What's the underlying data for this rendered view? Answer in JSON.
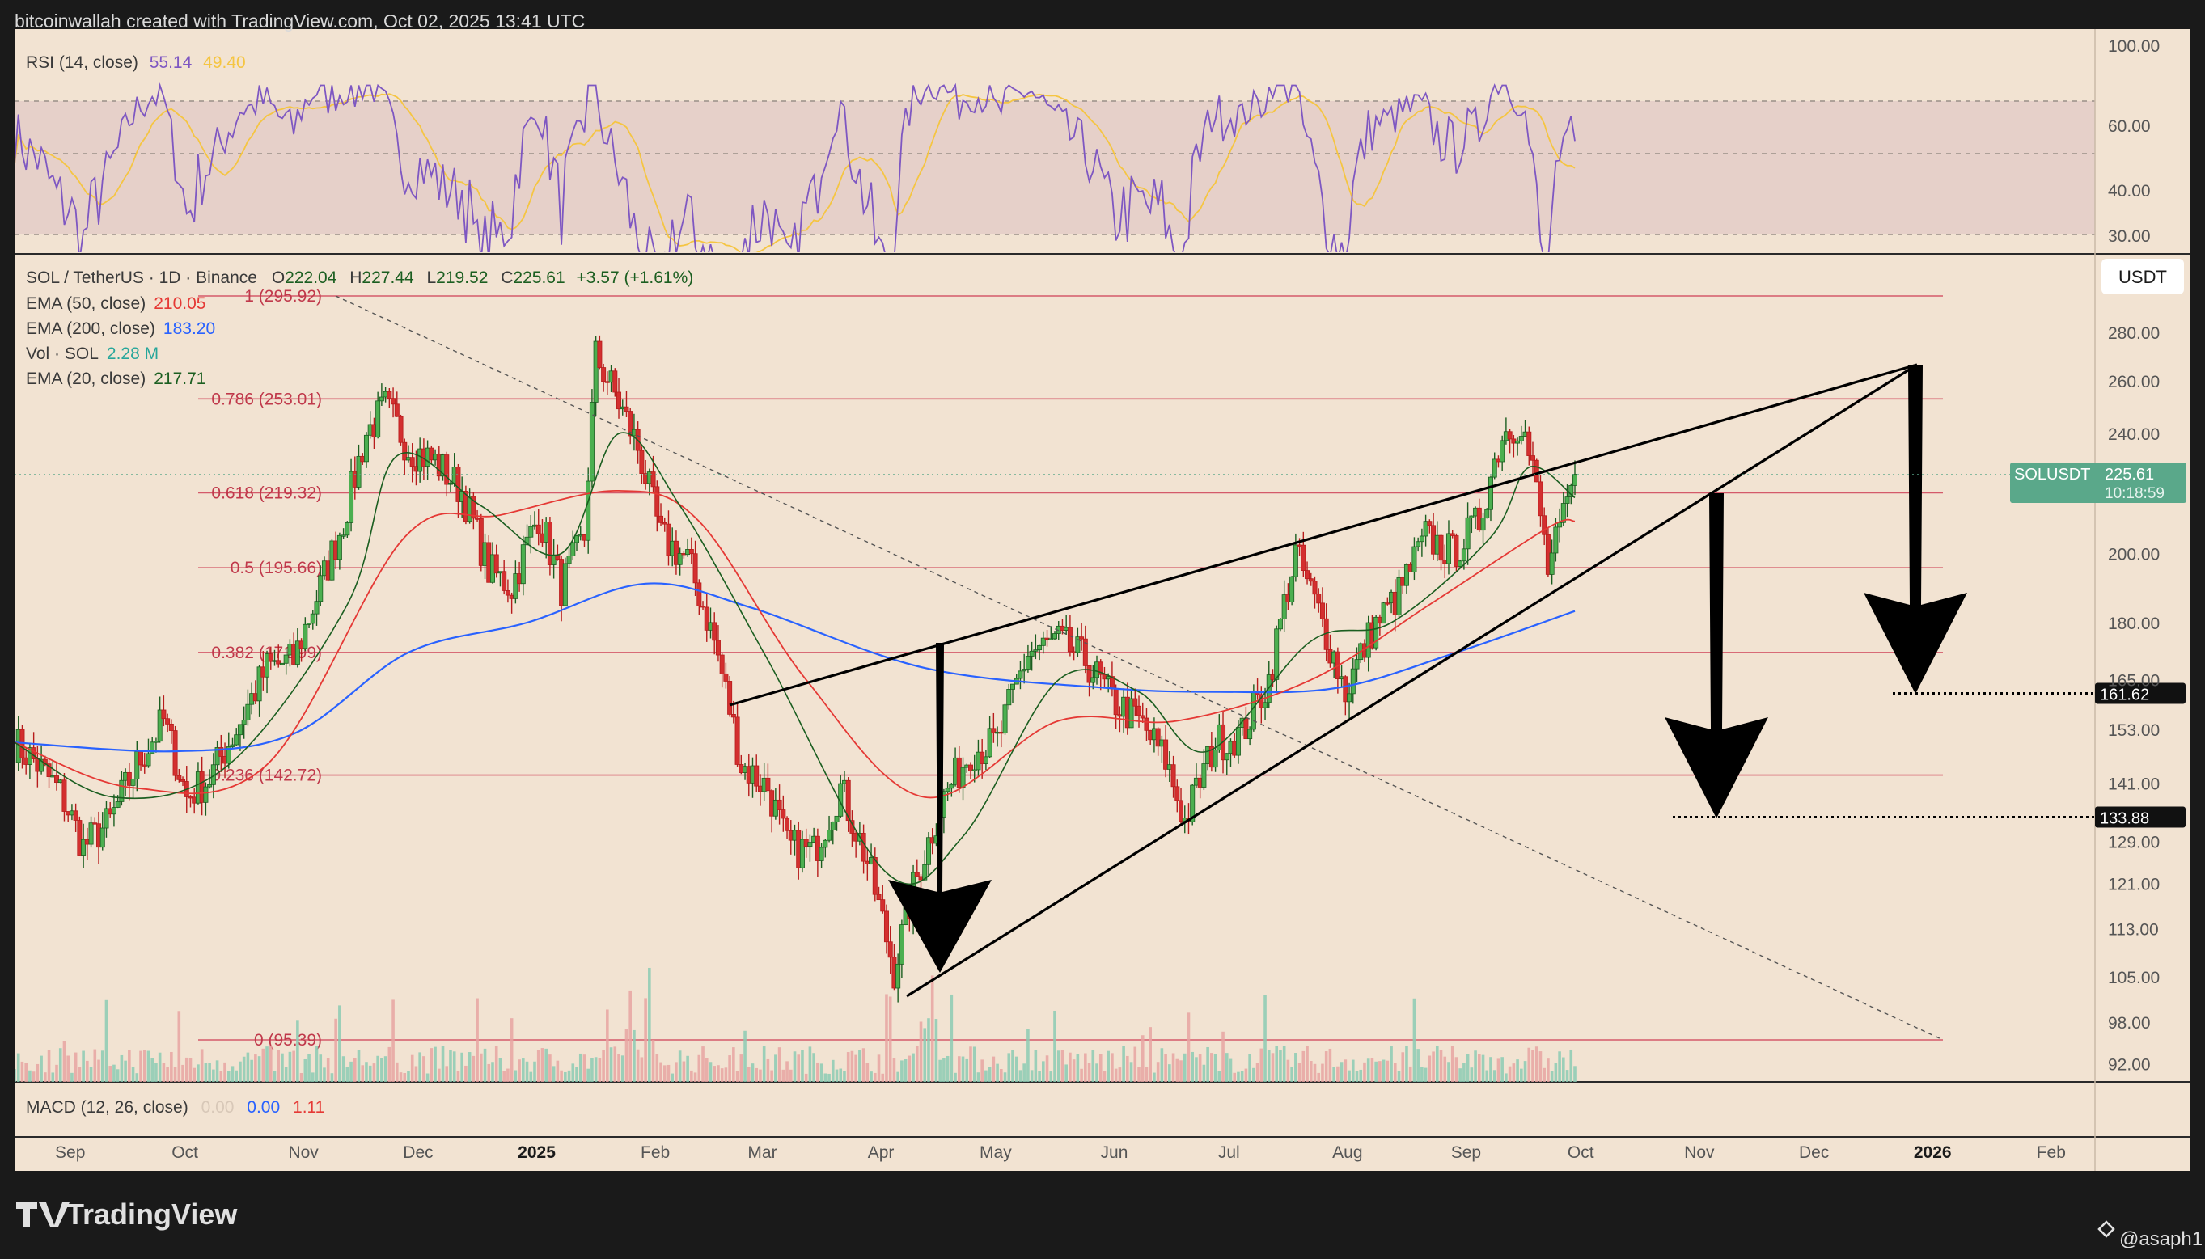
{
  "header": {
    "attribution": "bitcoinwallah created with TradingView.com, Oct 02, 2025 13:41 UTC"
  },
  "footer": {
    "logo_text": "TradingView",
    "author": "@asaph1"
  },
  "rsi": {
    "label": "RSI (14, close)",
    "value": "55.14",
    "ma_value": "49.40",
    "axis": [
      "100.00",
      "60.00",
      "40.00",
      "30.00"
    ],
    "colors": {
      "rsi": "#7e57c2",
      "ma": "#f5c542"
    }
  },
  "legend": {
    "symbol": "SOL / TetherUS · 1D · Binance",
    "ohlc": {
      "o_label": "O",
      "o": "222.04",
      "h_label": "H",
      "h": "227.44",
      "l_label": "L",
      "l": "219.52",
      "c_label": "C",
      "c": "225.61",
      "change": "+3.57 (+1.61%)"
    },
    "ema50": {
      "label": "EMA (50, close)",
      "value": "210.05",
      "color": "#e53935"
    },
    "ema200": {
      "label": "EMA (200, close)",
      "value": "183.20",
      "color": "#2962ff"
    },
    "vol": {
      "label": "Vol · SOL",
      "value": "2.28 M",
      "color": "#26a69a"
    },
    "ema20": {
      "label": "EMA (20, close)",
      "value": "217.71",
      "color": "#1b5e20"
    }
  },
  "macd": {
    "label": "MACD (12, 26, close)",
    "hist": "0.00",
    "macd": "0.00",
    "signal": "1.11"
  },
  "currency_button": "USDT",
  "price_tag": {
    "symbol": "SOLUSDT",
    "price": "225.61",
    "countdown": "10:18:59"
  },
  "targets": [
    "161.62",
    "133.88"
  ],
  "chart_data": {
    "type": "candlestick",
    "symbol": "SOL / TetherUS",
    "timeframe": "1D",
    "price_axis_ticks": [
      280.0,
      260.0,
      240.0,
      220.0,
      200.0,
      180.0,
      165.0,
      153.0,
      141.0,
      129.0,
      121.0,
      113.0,
      105.0,
      98.0,
      92.0
    ],
    "price_axis_labels": [
      "280.00",
      "260.00",
      "240.00",
      "220.00",
      "200.00",
      "180.00",
      "165.00",
      "153.00",
      "141.00",
      "129.00",
      "121.00",
      "113.00",
      "105.00",
      "98.00",
      "92.00"
    ],
    "time_axis_labels": [
      "Sep",
      "Oct",
      "Nov",
      "Dec",
      "2025",
      "Feb",
      "Mar",
      "Apr",
      "May",
      "Jun",
      "Jul",
      "Aug",
      "Sep",
      "Oct",
      "Nov",
      "Dec",
      "2026",
      "Feb"
    ],
    "fib_levels": [
      {
        "label": "1 (295.92)",
        "price": 295.92
      },
      {
        "label": "0.786 (253.01)",
        "price": 253.01
      },
      {
        "label": "0.618 (219.32)",
        "price": 219.32
      },
      {
        "label": "0.5 (195.66)",
        "price": 195.66
      },
      {
        "label": "0.382 (171.99)",
        "price": 171.99
      },
      {
        "label": "0.236 (142.72)",
        "price": 142.72
      },
      {
        "label": "0 (95.39)",
        "price": 95.39
      }
    ],
    "price_path": [
      [
        "2024-08-20",
        150
      ],
      [
        "2024-08-25",
        146
      ],
      [
        "2024-09-01",
        139
      ],
      [
        "2024-09-07",
        128
      ],
      [
        "2024-09-14",
        133
      ],
      [
        "2024-09-21",
        145
      ],
      [
        "2024-09-28",
        155
      ],
      [
        "2024-10-04",
        138
      ],
      [
        "2024-10-10",
        142
      ],
      [
        "2024-10-17",
        153
      ],
      [
        "2024-10-25",
        168
      ],
      [
        "2024-11-01",
        170
      ],
      [
        "2024-11-08",
        190
      ],
      [
        "2024-11-14",
        210
      ],
      [
        "2024-11-20",
        240
      ],
      [
        "2024-11-25",
        250
      ],
      [
        "2024-12-01",
        235
      ],
      [
        "2024-12-08",
        230
      ],
      [
        "2024-12-15",
        220
      ],
      [
        "2024-12-22",
        195
      ],
      [
        "2024-12-28",
        190
      ],
      [
        "2025-01-04",
        212
      ],
      [
        "2025-01-10",
        190
      ],
      [
        "2025-01-16",
        205
      ],
      [
        "2025-01-19",
        270
      ],
      [
        "2025-01-23",
        258
      ],
      [
        "2025-01-30",
        235
      ],
      [
        "2025-02-05",
        205
      ],
      [
        "2025-02-12",
        198
      ],
      [
        "2025-02-19",
        175
      ],
      [
        "2025-02-26",
        145
      ],
      [
        "2025-03-05",
        140
      ],
      [
        "2025-03-10",
        128
      ],
      [
        "2025-03-17",
        127
      ],
      [
        "2025-03-24",
        140
      ],
      [
        "2025-03-31",
        125
      ],
      [
        "2025-04-07",
        106
      ],
      [
        "2025-04-12",
        120
      ],
      [
        "2025-04-20",
        138
      ],
      [
        "2025-04-27",
        148
      ],
      [
        "2025-05-04",
        150
      ],
      [
        "2025-05-12",
        172
      ],
      [
        "2025-05-20",
        175
      ],
      [
        "2025-05-27",
        170
      ],
      [
        "2025-06-03",
        160
      ],
      [
        "2025-06-10",
        155
      ],
      [
        "2025-06-17",
        146
      ],
      [
        "2025-06-22",
        133
      ],
      [
        "2025-06-30",
        150
      ],
      [
        "2025-07-07",
        152
      ],
      [
        "2025-07-14",
        165
      ],
      [
        "2025-07-21",
        200
      ],
      [
        "2025-07-28",
        180
      ],
      [
        "2025-08-03",
        162
      ],
      [
        "2025-08-10",
        178
      ],
      [
        "2025-08-17",
        188
      ],
      [
        "2025-08-24",
        205
      ],
      [
        "2025-08-31",
        200
      ],
      [
        "2025-09-07",
        210
      ],
      [
        "2025-09-13",
        240
      ],
      [
        "2025-09-18",
        245
      ],
      [
        "2025-09-22",
        220
      ],
      [
        "2025-09-25",
        195
      ],
      [
        "2025-09-29",
        210
      ],
      [
        "2025-10-02",
        225.61
      ]
    ],
    "ema20_path": [
      [
        "2024-08-20",
        150
      ],
      [
        "2024-09-15",
        138
      ],
      [
        "2024-10-15",
        145
      ],
      [
        "2024-11-15",
        185
      ],
      [
        "2024-11-28",
        232
      ],
      [
        "2024-12-20",
        215
      ],
      [
        "2025-01-10",
        200
      ],
      [
        "2025-01-25",
        240
      ],
      [
        "2025-02-10",
        215
      ],
      [
        "2025-03-05",
        170
      ],
      [
        "2025-04-05",
        123
      ],
      [
        "2025-04-25",
        130
      ],
      [
        "2025-05-20",
        165
      ],
      [
        "2025-06-10",
        162
      ],
      [
        "2025-06-28",
        148
      ],
      [
        "2025-07-25",
        175
      ],
      [
        "2025-08-15",
        180
      ],
      [
        "2025-09-10",
        205
      ],
      [
        "2025-09-20",
        228
      ],
      [
        "2025-10-02",
        217.71
      ]
    ],
    "ema50_path": [
      [
        "2024-08-20",
        150
      ],
      [
        "2024-09-20",
        140
      ],
      [
        "2024-10-25",
        145
      ],
      [
        "2024-11-30",
        205
      ],
      [
        "2024-12-25",
        212
      ],
      [
        "2025-01-25",
        220
      ],
      [
        "2025-02-15",
        210
      ],
      [
        "2025-03-15",
        165
      ],
      [
        "2025-04-15",
        138
      ],
      [
        "2025-05-20",
        155
      ],
      [
        "2025-06-20",
        155
      ],
      [
        "2025-07-25",
        165
      ],
      [
        "2025-08-25",
        185
      ],
      [
        "2025-09-25",
        208
      ],
      [
        "2025-10-02",
        210.05
      ]
    ],
    "ema200_path": [
      [
        "2024-08-20",
        150
      ],
      [
        "2024-10-01",
        148
      ],
      [
        "2024-11-01",
        152
      ],
      [
        "2024-12-01",
        172
      ],
      [
        "2025-01-01",
        180
      ],
      [
        "2025-02-01",
        191
      ],
      [
        "2025-03-01",
        184
      ],
      [
        "2025-04-15",
        168
      ],
      [
        "2025-06-01",
        163
      ],
      [
        "2025-07-01",
        162
      ],
      [
        "2025-08-01",
        163
      ],
      [
        "2025-09-01",
        172
      ],
      [
        "2025-10-02",
        183.2
      ]
    ]
  }
}
